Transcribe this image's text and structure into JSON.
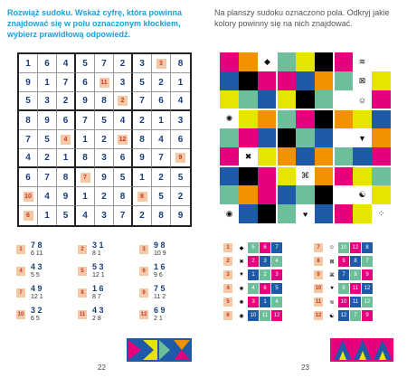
{
  "left_page": {
    "instruction": "Rozwiąż sudoku. Wskaż cyfrę, która powinna znajdować się w polu oznaczonym kłockiem, wybierz prawidłową odpowiedź.",
    "page_number": "22",
    "sudoku": [
      [
        "1",
        "6",
        "4",
        "5",
        "7",
        "2",
        "3",
        "[3]",
        "8"
      ],
      [
        "9",
        "1",
        "7",
        "6",
        "[11]",
        "3",
        "5",
        "2",
        "1"
      ],
      [
        "5",
        "3",
        "2",
        "9",
        "8",
        "[2]",
        "7",
        "6",
        "4"
      ],
      [
        "8",
        "9",
        "6",
        "7",
        "5",
        "4",
        "2",
        "1",
        "3"
      ],
      [
        "7",
        "5",
        "[4]",
        "1",
        "2",
        "[12]",
        "8",
        "4",
        "6"
      ],
      [
        "4",
        "2",
        "1",
        "8",
        "3",
        "6",
        "9",
        "7",
        "[9]"
      ],
      [
        "6",
        "7",
        "8",
        "[7]",
        "9",
        "5",
        "1",
        "2",
        "5"
      ],
      [
        "[10]",
        "4",
        "9",
        "1",
        "2",
        "8",
        "[8]",
        "5",
        "2"
      ],
      [
        "[6]",
        "1",
        "5",
        "4",
        "3",
        "7",
        "2",
        "8",
        "9"
      ]
    ],
    "options": [
      {
        "num": "1",
        "top": "7 8",
        "bottom": "6 11"
      },
      {
        "num": "2",
        "top": "3 1",
        "bottom": "8 1"
      },
      {
        "num": "3",
        "top": "9 8",
        "bottom": "10 9"
      },
      {
        "num": "4",
        "top": "4 3",
        "bottom": "5 5"
      },
      {
        "num": "5",
        "top": "5 3",
        "bottom": "12 1"
      },
      {
        "num": "6",
        "top": "1 6",
        "bottom": "9 6"
      },
      {
        "num": "7",
        "top": "4 9",
        "bottom": "12 1"
      },
      {
        "num": "8",
        "top": "1 6",
        "bottom": "8 7"
      },
      {
        "num": "9",
        "top": "7 5",
        "bottom": "11 2"
      },
      {
        "num": "10",
        "top": "3 2",
        "bottom": "6 5"
      },
      {
        "num": "11",
        "top": "4 3",
        "bottom": "2 8"
      },
      {
        "num": "12",
        "top": "6 9",
        "bottom": "2 1"
      }
    ]
  },
  "right_page": {
    "instruction": "Na planszy sudoku oznaczono pola. Odkryj jakie kolory powinny się na nich znajdować.",
    "page_number": "23",
    "color_grid": [
      [
        "#e6007e",
        "#f39200",
        "#ffffff",
        "#6cbf9a",
        "#e5e500",
        "#000000",
        "#e6007e",
        "#1e5aa8",
        "#ffffff"
      ],
      [
        "#1e5aa8",
        "#000000",
        "#e6007e",
        "#e6007e",
        "#1e5aa8",
        "#f39200",
        "#6cbf9a",
        "#ffffff",
        "#e5e500"
      ],
      [
        "#e5e500",
        "#6cbf9a",
        "#1e5aa8",
        "#e5e500",
        "#000000",
        "#6cbf9a",
        "#ffffff",
        "#e5e500",
        "#e6007e"
      ],
      [
        "#ffffff",
        "#e5e500",
        "#f39200",
        "#6cbf9a",
        "#e6007e",
        "#000000",
        "#f39200",
        "#e5e500",
        "#1e5aa8"
      ],
      [
        "#6cbf9a",
        "#e6007e",
        "#1e5aa8",
        "#000000",
        "#6cbf9a",
        "#1e5aa8",
        "#ffffff",
        "#e6007e",
        "#f39200"
      ],
      [
        "#e6007e",
        "#ffffff",
        "#e5e500",
        "#f39200",
        "#1e5aa8",
        "#f39200",
        "#6cbf9a",
        "#1e5aa8",
        "#e6007e"
      ],
      [
        "#1e5aa8",
        "#000000",
        "#e6007e",
        "#e5e500",
        "#ffffff",
        "#f39200",
        "#e6007e",
        "#e5e500",
        "#6cbf9a"
      ],
      [
        "#6cbf9a",
        "#f39200",
        "#e6007e",
        "#1e5aa8",
        "#6cbf9a",
        "#000000",
        "#ffffff",
        "#e6007e",
        "#e5e500"
      ],
      [
        "#ffffff",
        "#1e5aa8",
        "#000000",
        "#6cbf9a",
        "#ffffff",
        "#1e5aa8",
        "#e6007e",
        "#e5e500",
        "#ffffff"
      ]
    ],
    "symbols": [
      {
        "r": 0,
        "c": 2,
        "s": "◆"
      },
      {
        "r": 0,
        "c": 7,
        "s": "≋"
      },
      {
        "r": 1,
        "c": 7,
        "s": "⊠"
      },
      {
        "r": 2,
        "c": 7,
        "s": "☺"
      },
      {
        "r": 3,
        "c": 0,
        "s": "✺"
      },
      {
        "r": 4,
        "c": 7,
        "s": "▼"
      },
      {
        "r": 5,
        "c": 1,
        "s": "✖"
      },
      {
        "r": 6,
        "c": 4,
        "s": "⌘"
      },
      {
        "r": 7,
        "c": 7,
        "s": "☯"
      },
      {
        "r": 8,
        "c": 0,
        "s": "◉"
      },
      {
        "r": 8,
        "c": 4,
        "s": "♥"
      },
      {
        "r": 8,
        "c": 8,
        "s": "⁘"
      }
    ],
    "options": [
      {
        "num": "1",
        "icon": "◆",
        "vals": [
          "5",
          "6",
          "7"
        ]
      },
      {
        "num": "2",
        "icon": "✖",
        "vals": [
          "2",
          "3",
          "4"
        ]
      },
      {
        "num": "3",
        "icon": "▼",
        "vals": [
          "1",
          "2",
          "3"
        ]
      },
      {
        "num": "4",
        "icon": "✺",
        "vals": [
          "4",
          "6",
          "5"
        ]
      },
      {
        "num": "5",
        "icon": "✺",
        "vals": [
          "3",
          "1",
          "4"
        ]
      },
      {
        "num": "6",
        "icon": "◉",
        "vals": [
          "10",
          "11",
          "12"
        ]
      },
      {
        "num": "7",
        "icon": "☺",
        "vals": [
          "10",
          "12",
          "8"
        ]
      },
      {
        "num": "8",
        "icon": "⊠",
        "vals": [
          "9",
          "8",
          "7"
        ]
      },
      {
        "num": "9",
        "icon": "⌘",
        "vals": [
          "7",
          "8",
          "9"
        ]
      },
      {
        "num": "10",
        "icon": "♥",
        "vals": [
          "9",
          "11",
          "12"
        ]
      },
      {
        "num": "11",
        "icon": "≋",
        "vals": [
          "10",
          "11",
          "12"
        ]
      },
      {
        "num": "12",
        "icon": "☯",
        "vals": [
          "12",
          "7",
          "9"
        ]
      }
    ]
  }
}
